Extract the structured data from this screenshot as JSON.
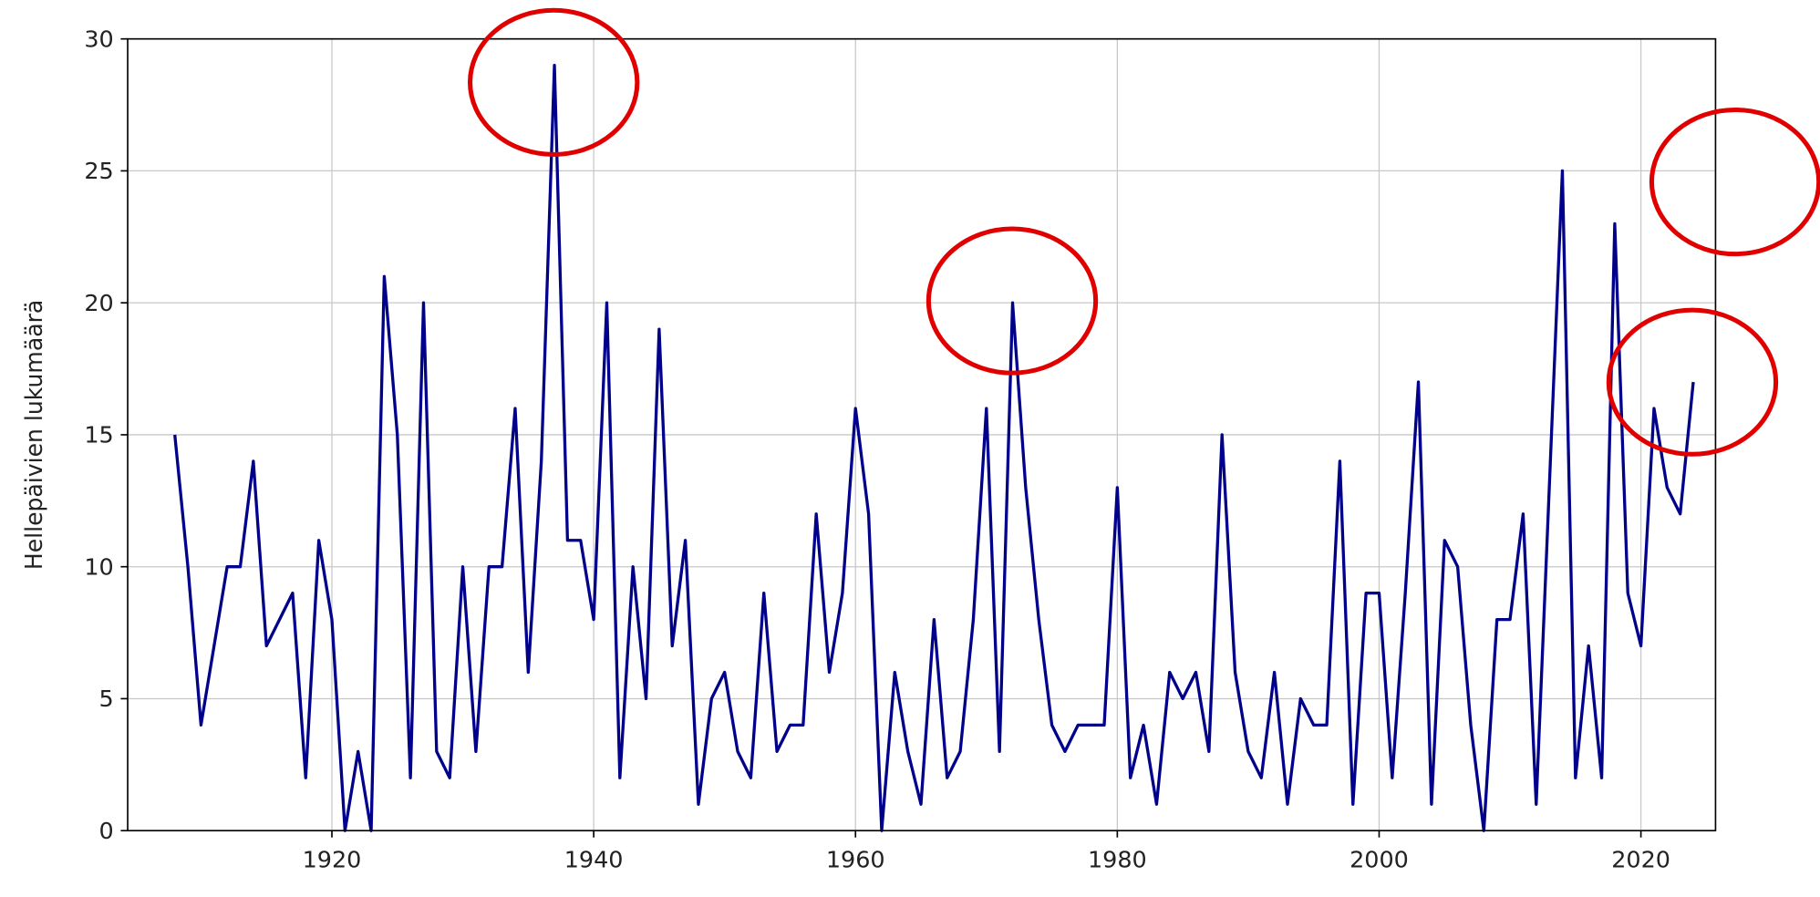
{
  "chart_data": {
    "type": "line",
    "ylabel": "Hellepäivien lukumäärä",
    "x": [
      1908,
      1909,
      1910,
      1911,
      1912,
      1913,
      1914,
      1915,
      1916,
      1917,
      1918,
      1919,
      1920,
      1921,
      1922,
      1923,
      1924,
      1925,
      1926,
      1927,
      1928,
      1929,
      1930,
      1931,
      1932,
      1933,
      1934,
      1935,
      1936,
      1937,
      1938,
      1939,
      1940,
      1941,
      1942,
      1943,
      1944,
      1945,
      1946,
      1947,
      1948,
      1949,
      1950,
      1951,
      1952,
      1953,
      1954,
      1955,
      1956,
      1957,
      1958,
      1959,
      1960,
      1961,
      1962,
      1963,
      1964,
      1965,
      1966,
      1967,
      1968,
      1969,
      1970,
      1971,
      1972,
      1973,
      1974,
      1975,
      1976,
      1977,
      1978,
      1979,
      1980,
      1981,
      1982,
      1983,
      1984,
      1985,
      1986,
      1987,
      1988,
      1989,
      1990,
      1991,
      1992,
      1993,
      1994,
      1995,
      1996,
      1997,
      1998,
      1999,
      2000,
      2001,
      2002,
      2003,
      2004,
      2005,
      2006,
      2007,
      2008,
      2009,
      2010,
      2011,
      2012,
      2013,
      2014,
      2015,
      2016,
      2017,
      2018,
      2019,
      2020,
      2021,
      2022,
      2023,
      2024
    ],
    "values": [
      15,
      10,
      4,
      7,
      10,
      10,
      14,
      7,
      8,
      9,
      2,
      11,
      8,
      0,
      3,
      0,
      21,
      15,
      2,
      20,
      3,
      2,
      10,
      3,
      10,
      10,
      16,
      6,
      14,
      29,
      11,
      11,
      8,
      20,
      2,
      10,
      5,
      19,
      7,
      11,
      1,
      5,
      6,
      3,
      2,
      9,
      3,
      4,
      4,
      12,
      6,
      9,
      16,
      12,
      0,
      6,
      3,
      1,
      8,
      2,
      3,
      8,
      16,
      3,
      20,
      13,
      8,
      4,
      3,
      4,
      4,
      4,
      13,
      2,
      4,
      1,
      6,
      5,
      6,
      3,
      15,
      6,
      3,
      2,
      6,
      1,
      5,
      4,
      4,
      14,
      1,
      9,
      9,
      2,
      9,
      17,
      1,
      11,
      10,
      4,
      0,
      8,
      8,
      12,
      1,
      13,
      25,
      2,
      7,
      2,
      23,
      9,
      7,
      16,
      13,
      12,
      17
    ],
    "color": "#00008b",
    "xlim": [
      1904.4,
      2025.7
    ],
    "ylim": [
      0,
      30
    ],
    "xticks": [
      1920,
      1940,
      1960,
      1980,
      2000,
      2020
    ],
    "yticks": [
      0,
      5,
      10,
      15,
      20,
      25,
      30
    ],
    "grid": true
  }
}
